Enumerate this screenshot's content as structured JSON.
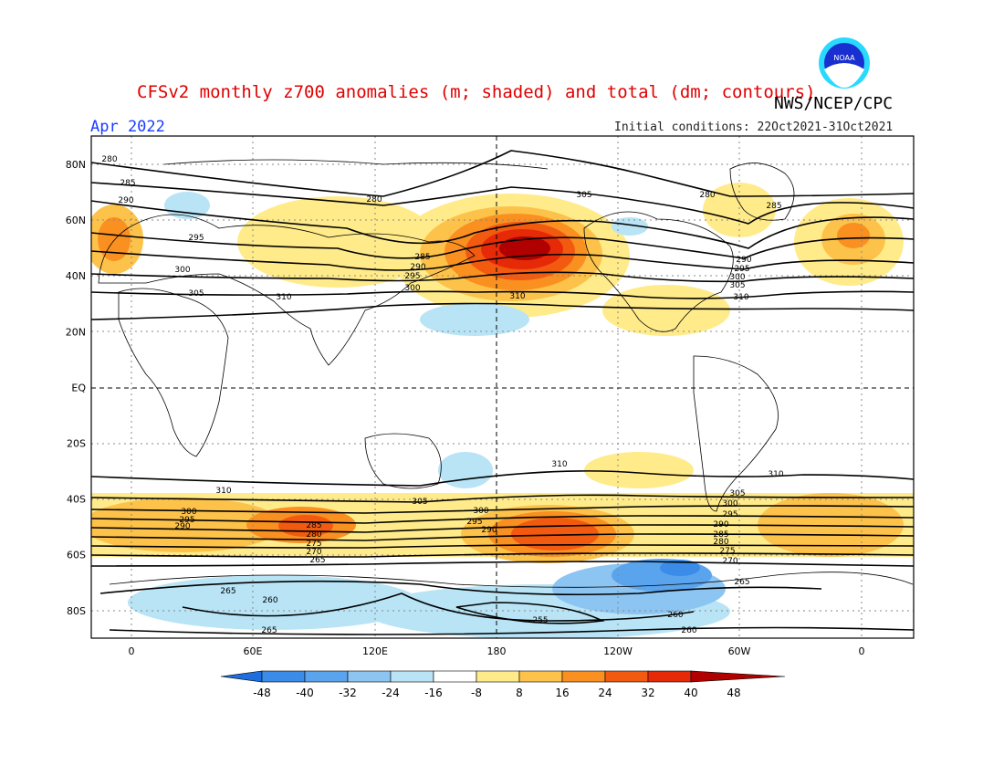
{
  "header": {
    "title": "CFSv2 monthly z700 anomalies (m; shaded) and total (dm; contours)",
    "agency": "NWS/NCEP/CPC",
    "month": "Apr 2022",
    "initial_conditions": "Initial conditions: 22Oct2021-31Oct2021",
    "logo_text": "NOAA"
  },
  "axes": {
    "lat_labels": [
      "80N",
      "60N",
      "40N",
      "20N",
      "EQ",
      "20S",
      "40S",
      "60S",
      "80S"
    ],
    "lon_labels": [
      "0",
      "60E",
      "120E",
      "180",
      "120W",
      "60W",
      "0"
    ]
  },
  "colorbar": {
    "labels": [
      "-48",
      "-40",
      "-32",
      "-24",
      "-16",
      "-8",
      "8",
      "16",
      "24",
      "32",
      "40",
      "48"
    ],
    "colors": [
      "#1e6ee0",
      "#3a8ce8",
      "#5aa4ee",
      "#8cc4f2",
      "#b8e4f6",
      "#ffffff",
      "#ffeb8a",
      "#fdc24a",
      "#f99020",
      "#f25a10",
      "#e62a08",
      "#b00000"
    ]
  },
  "contour_labels": [
    "280",
    "285",
    "290",
    "295",
    "300",
    "305",
    "310",
    "280",
    "285",
    "290",
    "295",
    "300",
    "305",
    "310",
    "280",
    "285",
    "290",
    "295",
    "300",
    "305",
    "310",
    "310",
    "310",
    "310",
    "305",
    "300",
    "295",
    "290",
    "285",
    "280",
    "275",
    "270",
    "265",
    "300",
    "295",
    "290",
    "285",
    "280",
    "275",
    "270",
    "265",
    "305",
    "300",
    "295",
    "290",
    "265",
    "260",
    "255",
    "260",
    "265",
    "260"
  ]
}
